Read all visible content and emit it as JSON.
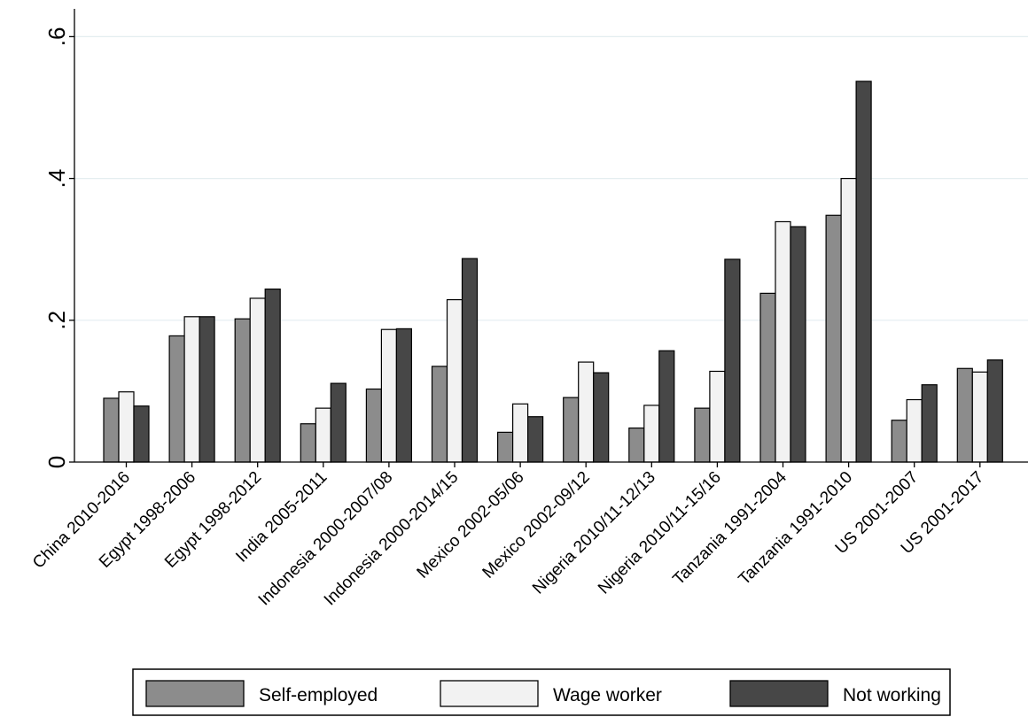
{
  "chart_data": {
    "type": "bar",
    "title": "",
    "xlabel": "",
    "ylabel": "",
    "ylim": [
      0,
      0.62
    ],
    "yticks": [
      0,
      0.2,
      0.4,
      0.6
    ],
    "ytick_labels": [
      "0",
      ".2",
      ".4",
      ".6"
    ],
    "grid": true,
    "legend_position": "bottom",
    "categories": [
      "China 2010-2016",
      "Egypt 1998-2006",
      "Egypt 1998-2012",
      "India 2005-2011",
      "Indonesia 2000-2007/08",
      "Indonesia 2000-2014/15",
      "Mexico 2002-05/06",
      "Mexico 2002-09/12",
      "Nigeria 2010/11-12/13",
      "Nigeria 2010/11-15/16",
      "Tanzania 1991-2004",
      "Tanzania 1991-2010",
      "US 2001-2007",
      "US 2001-2017"
    ],
    "series": [
      {
        "name": "Self-employed",
        "color": "#8c8c8c",
        "values": [
          0.09,
          0.178,
          0.202,
          0.054,
          0.103,
          0.135,
          0.042,
          0.091,
          0.048,
          0.076,
          0.238,
          0.348,
          0.059,
          0.132
        ]
      },
      {
        "name": "Wage worker",
        "color": "#f2f2f2",
        "values": [
          0.099,
          0.205,
          0.231,
          0.076,
          0.187,
          0.229,
          0.082,
          0.141,
          0.08,
          0.128,
          0.339,
          0.4,
          0.088,
          0.127
        ]
      },
      {
        "name": "Not working",
        "color": "#474747",
        "values": [
          0.079,
          0.205,
          0.244,
          0.111,
          0.188,
          0.287,
          0.064,
          0.126,
          0.157,
          0.286,
          0.332,
          0.537,
          0.109,
          0.144
        ]
      }
    ]
  }
}
